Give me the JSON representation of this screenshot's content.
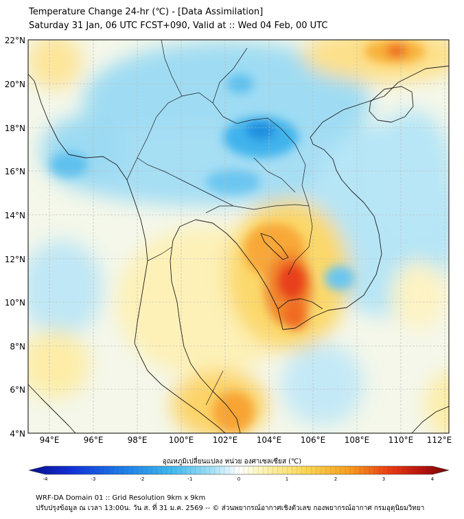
{
  "header": {
    "title_line1": "Temperature Change 24-hr (℃) - [Data Assimilation]",
    "title_line2": "Saturday 31 Jan, 06 UTC FCST+090, Valid at :: Wed 04 Feb, 00 UTC"
  },
  "map": {
    "lat_labels": [
      "22°N",
      "20°N",
      "18°N",
      "16°N",
      "14°N",
      "12°N",
      "10°N",
      "8°N",
      "6°N",
      "4°N"
    ],
    "lon_labels": [
      "94°E",
      "96°E",
      "98°E",
      "100°E",
      "102°E",
      "104°E",
      "106°E",
      "108°E",
      "110°E",
      "112°E"
    ]
  },
  "colorbar": {
    "label": "อุณหภูมิเปลี่ยนแปลง หน่วย องศาเซลเซียส (℃)",
    "ticks": [
      "-4",
      "-3",
      "-2",
      "-1",
      "0",
      "1",
      "2",
      "3",
      "4"
    ],
    "min": -4,
    "max": 4
  },
  "footer": {
    "line1": "WRF-DA Domain 01 :: Grid Resolution 9km x 9km",
    "line2": "ปรับปรุงข้อมูล ณ เวลา 13:00น. วัน ส. ที่ 31 ม.ค. 2569 -- © ส่วนพยากรณ์อากาศเชิงตัวเลข กองพยากรณ์อากาศ กรมอุตุนิยมวิทยา"
  }
}
